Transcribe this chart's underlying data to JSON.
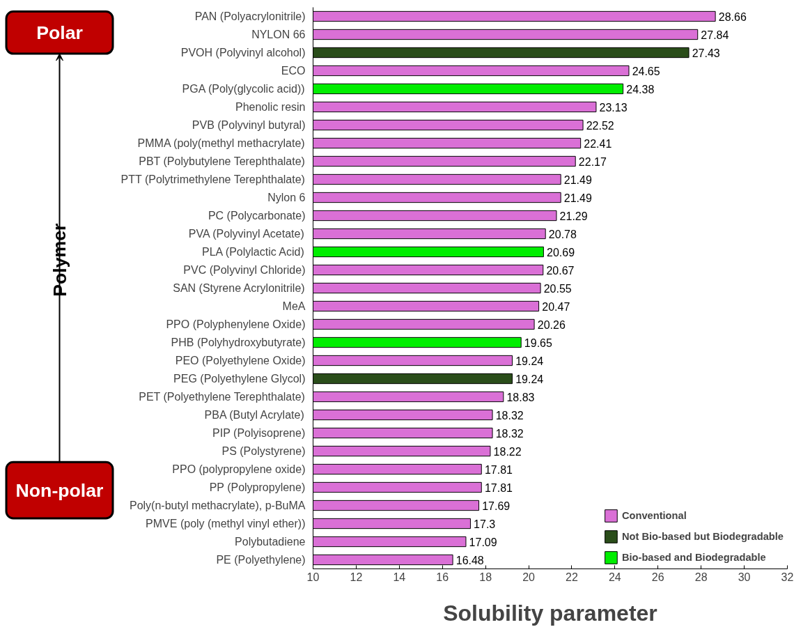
{
  "chart_data": {
    "type": "bar",
    "orientation": "horizontal",
    "xlabel": "Solubility parameter",
    "ylabel": "Polymer",
    "annotations": [
      "Polar",
      "Non-polar"
    ],
    "categories": [
      "PAN (Polyacrylonitrile)",
      "NYLON 66",
      "PVOH (Polyvinyl alcohol)",
      "ECO",
      "PGA (Poly(glycolic acid))",
      "Phenolic resin",
      "PVB (Polyvinyl butyral)",
      "PMMA (poly(methyl methacrylate)",
      "PBT (Polybutylene Terephthalate)",
      "PTT (Polytrimethylene Terephthalate)",
      "Nylon 6",
      "PC (Polycarbonate)",
      "PVA (Polyvinyl Acetate)",
      "PLA (Polylactic Acid)",
      "PVC (Polyvinyl Chloride)",
      "SAN (Styrene Acrylonitrile)",
      "MeA",
      "PPO (Polyphenylene Oxide)",
      "PHB (Polyhydroxybutyrate)",
      "PEO (Polyethylene Oxide)",
      "PEG (Polyethylene Glycol)",
      "PET (Polyethylene Terephthalate)",
      "PBA (Butyl Acrylate)",
      "PIP (Polyisoprene)",
      "PS (Polystyrene)",
      "PPO (polypropylene oxide)",
      "PP (Polypropylene)",
      "Poly(n-butyl methacrylate), p-BuMA",
      "PMVE (poly (methyl vinyl ether))",
      "Polybutadiene",
      "PE (Polyethylene)"
    ],
    "series": [
      {
        "name": "Conventional",
        "color": "#da70d6",
        "values": [
          28.66,
          27.84,
          null,
          24.65,
          null,
          23.13,
          22.52,
          22.41,
          22.17,
          21.49,
          21.49,
          21.29,
          20.78,
          null,
          20.67,
          20.55,
          20.47,
          20.26,
          null,
          19.24,
          null,
          18.83,
          18.32,
          18.32,
          18.22,
          17.81,
          17.81,
          17.69,
          17.3,
          17.09,
          16.48
        ]
      },
      {
        "name": "Not Bio-based but Biodegradable",
        "color": "#2a4d1a",
        "values": [
          null,
          null,
          27.43,
          null,
          null,
          null,
          null,
          null,
          null,
          null,
          null,
          null,
          null,
          null,
          null,
          null,
          null,
          null,
          null,
          null,
          19.24,
          null,
          null,
          null,
          null,
          null,
          null,
          null,
          null,
          null,
          null
        ]
      },
      {
        "name": "Bio-based and Biodegradable",
        "color": "#00ee00",
        "values": [
          null,
          null,
          null,
          null,
          24.38,
          null,
          null,
          null,
          null,
          null,
          null,
          null,
          null,
          20.69,
          null,
          null,
          null,
          null,
          19.65,
          null,
          null,
          null,
          null,
          null,
          null,
          null,
          null,
          null,
          null,
          null,
          null
        ]
      }
    ],
    "xlim": [
      10,
      32
    ],
    "xticks": [
      10,
      12,
      14,
      16,
      18,
      20,
      22,
      24,
      26,
      28,
      30,
      32
    ],
    "data_labels": true,
    "legend": "bottom right",
    "grid": false
  }
}
